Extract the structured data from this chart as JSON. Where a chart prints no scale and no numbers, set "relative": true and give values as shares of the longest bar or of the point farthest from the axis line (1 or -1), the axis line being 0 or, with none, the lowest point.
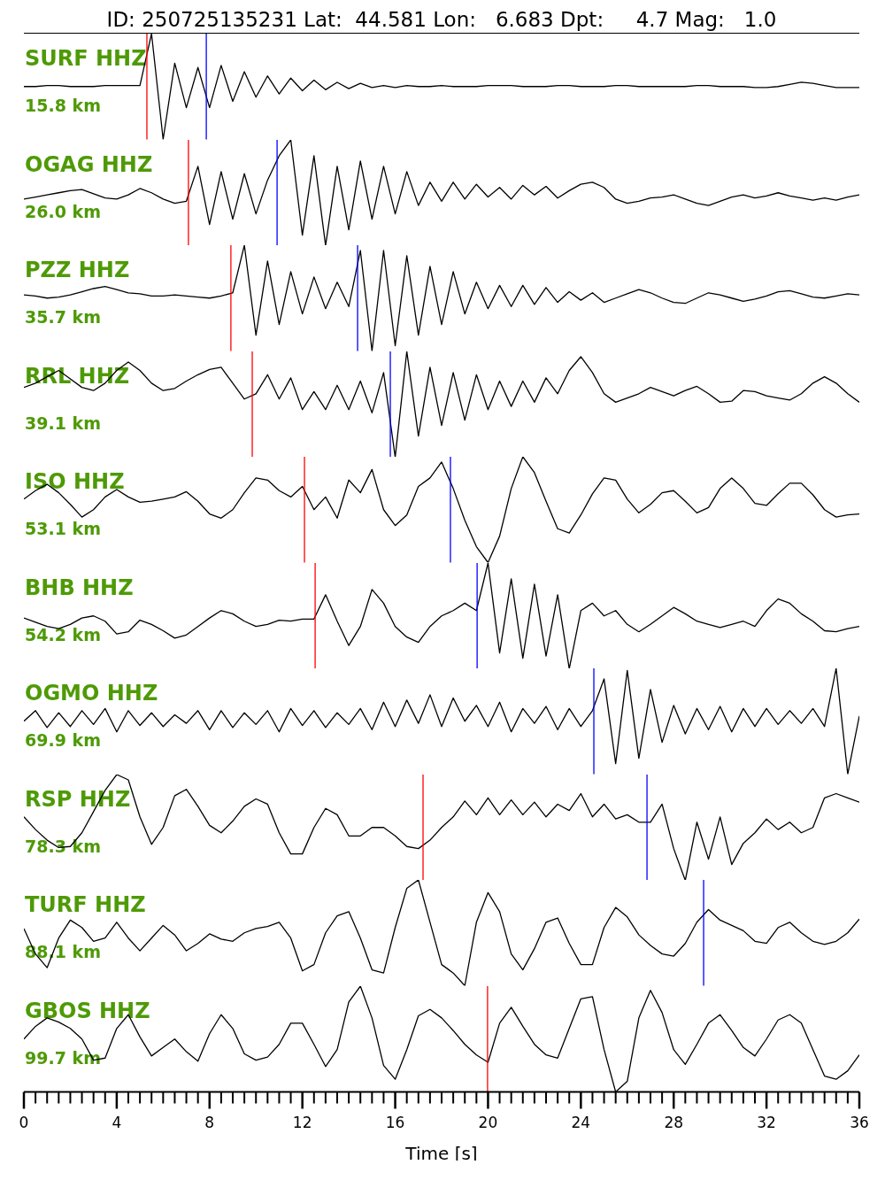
{
  "chart_data": [
    {
      "type": "other",
      "title": "ID: 250725135231 Lat:  44.581 Lon:   6.683 Dpt:     4.7 Mag:   1.0"
    },
    {
      "type": "line",
      "title": "SURF HHZ",
      "subtitle": "15.8 km",
      "relative": true,
      "xlim": [
        0,
        36
      ],
      "tick_labels": false,
      "x": [
        0,
        0.5,
        1,
        1.5,
        2,
        2.5,
        3,
        3.5,
        4,
        4.5,
        5,
        5.5,
        6,
        6.5,
        7,
        7.5,
        8,
        8.5,
        9,
        9.5,
        10,
        10.5,
        11,
        11.5,
        12,
        12.5,
        13,
        13.5,
        14,
        14.5,
        15,
        15.5,
        16,
        16.5,
        17,
        17.5,
        18,
        18.5,
        19,
        19.5,
        20,
        20.5,
        21,
        21.5,
        22,
        22.5,
        23,
        23.5,
        24,
        24.5,
        25,
        25.5,
        26,
        26.5,
        27,
        27.5,
        28,
        28.5,
        29,
        29.5,
        30,
        30.5,
        31,
        31.5,
        32,
        32.5,
        33,
        33.5,
        34,
        34.5,
        35,
        35.5,
        36
      ],
      "series": [
        {
          "color": "#000000",
          "values": [
            0.5,
            0.5,
            0.51,
            0.51,
            0.5,
            0.5,
            0.5,
            0.51,
            0.51,
            0.51,
            0.51,
            1.0,
            0.0,
            0.72,
            0.3,
            0.68,
            0.3,
            0.7,
            0.36,
            0.64,
            0.4,
            0.6,
            0.43,
            0.58,
            0.46,
            0.56,
            0.47,
            0.54,
            0.48,
            0.53,
            0.49,
            0.51,
            0.49,
            0.51,
            0.5,
            0.5,
            0.51,
            0.5,
            0.5,
            0.5,
            0.51,
            0.51,
            0.51,
            0.5,
            0.5,
            0.5,
            0.51,
            0.51,
            0.5,
            0.5,
            0.5,
            0.51,
            0.51,
            0.5,
            0.5,
            0.5,
            0.5,
            0.5,
            0.51,
            0.51,
            0.5,
            0.5,
            0.5,
            0.49,
            0.49,
            0.5,
            0.52,
            0.54,
            0.53,
            0.51,
            0.49,
            0.49,
            0.49
          ]
        }
      ],
      "ref_lines": [
        {
          "axis": "x",
          "value": 5.3,
          "color": "#ff0000"
        },
        {
          "axis": "x",
          "value": 7.86,
          "color": "#0000ff"
        }
      ]
    },
    {
      "type": "line",
      "title": "OGAG HHZ",
      "subtitle": "26.0 km",
      "relative": true,
      "xlim": [
        0,
        36
      ],
      "tick_labels": false,
      "x": [
        0,
        0.5,
        1,
        1.5,
        2,
        2.5,
        3,
        3.5,
        4,
        4.5,
        5,
        5.5,
        6,
        6.5,
        7,
        7.5,
        8,
        8.5,
        9,
        9.5,
        10,
        10.5,
        11,
        11.5,
        12,
        12.5,
        13,
        13.5,
        14,
        14.5,
        15,
        15.5,
        16,
        16.5,
        17,
        17.5,
        18,
        18.5,
        19,
        19.5,
        20,
        20.5,
        21,
        21.5,
        22,
        22.5,
        23,
        23.5,
        24,
        24.5,
        25,
        25.5,
        26,
        26.5,
        27,
        27.5,
        28,
        28.5,
        29,
        29.5,
        30,
        30.5,
        31,
        31.5,
        32,
        32.5,
        33,
        33.5,
        34,
        34.5,
        35,
        35.5,
        36
      ],
      "series": [
        {
          "color": "#000000",
          "values": [
            0.44,
            0.46,
            0.48,
            0.5,
            0.52,
            0.53,
            0.49,
            0.45,
            0.44,
            0.48,
            0.54,
            0.5,
            0.44,
            0.4,
            0.42,
            0.75,
            0.2,
            0.7,
            0.25,
            0.68,
            0.3,
            0.62,
            0.85,
            1.0,
            0.1,
            0.85,
            0.0,
            0.75,
            0.15,
            0.8,
            0.25,
            0.75,
            0.3,
            0.7,
            0.38,
            0.6,
            0.42,
            0.6,
            0.44,
            0.58,
            0.46,
            0.55,
            0.44,
            0.57,
            0.48,
            0.56,
            0.45,
            0.52,
            0.58,
            0.6,
            0.55,
            0.44,
            0.4,
            0.42,
            0.45,
            0.46,
            0.48,
            0.44,
            0.4,
            0.38,
            0.42,
            0.46,
            0.48,
            0.45,
            0.47,
            0.5,
            0.47,
            0.45,
            0.43,
            0.45,
            0.43,
            0.46,
            0.48
          ]
        }
      ],
      "ref_lines": [
        {
          "axis": "x",
          "value": 7.09,
          "color": "#ff0000"
        },
        {
          "axis": "x",
          "value": 10.91,
          "color": "#0000ff"
        }
      ]
    },
    {
      "type": "line",
      "title": "PZZ HHZ",
      "subtitle": "35.7 km",
      "relative": true,
      "xlim": [
        0,
        36
      ],
      "tick_labels": false,
      "x": [
        0,
        0.5,
        1,
        1.5,
        2,
        2.5,
        3,
        3.5,
        4,
        4.5,
        5,
        5.5,
        6,
        6.5,
        7,
        7.5,
        8,
        8.5,
        9,
        9.5,
        10,
        10.5,
        11,
        11.5,
        12,
        12.5,
        13,
        13.5,
        14,
        14.5,
        15,
        15.5,
        16,
        16.5,
        17,
        17.5,
        18,
        18.5,
        19,
        19.5,
        20,
        20.5,
        21,
        21.5,
        22,
        22.5,
        23,
        23.5,
        24,
        24.5,
        25,
        25.5,
        26,
        26.5,
        27,
        27.5,
        28,
        28.5,
        29,
        29.5,
        30,
        30.5,
        31,
        31.5,
        32,
        32.5,
        33,
        33.5,
        34,
        34.5,
        35,
        35.5,
        36
      ],
      "series": [
        {
          "color": "#000000",
          "values": [
            0.53,
            0.52,
            0.5,
            0.51,
            0.53,
            0.56,
            0.59,
            0.61,
            0.58,
            0.55,
            0.54,
            0.52,
            0.52,
            0.53,
            0.52,
            0.51,
            0.5,
            0.52,
            0.55,
            1.0,
            0.15,
            0.85,
            0.25,
            0.75,
            0.35,
            0.7,
            0.4,
            0.65,
            0.42,
            0.95,
            0.0,
            0.95,
            0.05,
            0.9,
            0.15,
            0.8,
            0.25,
            0.75,
            0.35,
            0.65,
            0.4,
            0.62,
            0.42,
            0.62,
            0.44,
            0.6,
            0.46,
            0.56,
            0.48,
            0.55,
            0.46,
            0.5,
            0.54,
            0.58,
            0.55,
            0.5,
            0.46,
            0.45,
            0.5,
            0.55,
            0.53,
            0.5,
            0.47,
            0.49,
            0.52,
            0.56,
            0.57,
            0.54,
            0.51,
            0.5,
            0.52,
            0.54,
            0.53
          ]
        }
      ],
      "ref_lines": [
        {
          "axis": "x",
          "value": 8.92,
          "color": "#ff0000"
        },
        {
          "axis": "x",
          "value": 14.38,
          "color": "#0000ff"
        }
      ]
    },
    {
      "type": "line",
      "title": "RRL HHZ",
      "subtitle": "39.1 km",
      "relative": true,
      "xlim": [
        0,
        36
      ],
      "tick_labels": false,
      "x": [
        0,
        0.5,
        1,
        1.5,
        2,
        2.5,
        3,
        3.5,
        4,
        4.5,
        5,
        5.5,
        6,
        6.5,
        7,
        7.5,
        8,
        8.5,
        9,
        9.5,
        10,
        10.5,
        11,
        11.5,
        12,
        12.5,
        13,
        13.5,
        14,
        14.5,
        15,
        15.5,
        16,
        16.5,
        17,
        17.5,
        18,
        18.5,
        19,
        19.5,
        20,
        20.5,
        21,
        21.5,
        22,
        22.5,
        23,
        23.5,
        24,
        24.5,
        25,
        25.5,
        26,
        26.5,
        27,
        27.5,
        28,
        28.5,
        29,
        29.5,
        30,
        30.5,
        31,
        31.5,
        32,
        32.5,
        33,
        33.5,
        34,
        34.5,
        35,
        35.5,
        36
      ],
      "series": [
        {
          "color": "#000000",
          "values": [
            0.66,
            0.7,
            0.76,
            0.82,
            0.74,
            0.66,
            0.63,
            0.7,
            0.82,
            0.9,
            0.82,
            0.7,
            0.63,
            0.65,
            0.72,
            0.78,
            0.83,
            0.85,
            0.7,
            0.55,
            0.6,
            0.78,
            0.55,
            0.75,
            0.45,
            0.62,
            0.45,
            0.68,
            0.45,
            0.72,
            0.42,
            0.8,
            0.0,
            1.0,
            0.2,
            0.85,
            0.3,
            0.8,
            0.35,
            0.78,
            0.45,
            0.72,
            0.48,
            0.72,
            0.52,
            0.75,
            0.6,
            0.82,
            0.95,
            0.8,
            0.6,
            0.52,
            0.56,
            0.6,
            0.66,
            0.62,
            0.58,
            0.63,
            0.67,
            0.6,
            0.52,
            0.53,
            0.63,
            0.62,
            0.58,
            0.56,
            0.54,
            0.6,
            0.7,
            0.76,
            0.7,
            0.6,
            0.52
          ]
        }
      ],
      "ref_lines": [
        {
          "axis": "x",
          "value": 9.84,
          "color": "#ff0000"
        },
        {
          "axis": "x",
          "value": 15.79,
          "color": "#0000ff"
        }
      ]
    },
    {
      "type": "line",
      "title": "ISO HHZ",
      "subtitle": "53.1 km",
      "relative": true,
      "xlim": [
        0,
        36
      ],
      "tick_labels": false,
      "x": [
        0,
        0.5,
        1,
        1.5,
        2,
        2.5,
        3,
        3.5,
        4,
        4.5,
        5,
        5.5,
        6,
        6.5,
        7,
        7.5,
        8,
        8.5,
        9,
        9.5,
        10,
        10.5,
        11,
        11.5,
        12,
        12.5,
        13,
        13.5,
        14,
        14.5,
        15,
        15.5,
        16,
        16.5,
        17,
        17.5,
        18,
        18.5,
        19,
        19.5,
        20,
        20.5,
        21,
        21.5,
        22,
        22.5,
        23,
        23.5,
        24,
        24.5,
        25,
        25.5,
        26,
        26.5,
        27,
        27.5,
        28,
        28.5,
        29,
        29.5,
        30,
        30.5,
        31,
        31.5,
        32,
        32.5,
        33,
        33.5,
        34,
        34.5,
        35,
        35.5,
        36
      ],
      "series": [
        {
          "color": "#000000",
          "values": [
            0.6,
            0.68,
            0.74,
            0.66,
            0.55,
            0.43,
            0.5,
            0.62,
            0.69,
            0.62,
            0.57,
            0.58,
            0.6,
            0.62,
            0.67,
            0.58,
            0.46,
            0.42,
            0.5,
            0.66,
            0.8,
            0.78,
            0.68,
            0.62,
            0.72,
            0.5,
            0.62,
            0.42,
            0.78,
            0.66,
            0.88,
            0.5,
            0.35,
            0.45,
            0.72,
            0.8,
            0.95,
            0.7,
            0.4,
            0.15,
            0.0,
            0.25,
            0.7,
            1.0,
            0.85,
            0.58,
            0.32,
            0.28,
            0.45,
            0.65,
            0.8,
            0.78,
            0.6,
            0.47,
            0.55,
            0.66,
            0.68,
            0.58,
            0.47,
            0.52,
            0.7,
            0.8,
            0.7,
            0.56,
            0.54,
            0.65,
            0.75,
            0.75,
            0.64,
            0.5,
            0.43,
            0.45,
            0.46
          ]
        }
      ],
      "ref_lines": [
        {
          "axis": "x",
          "value": 12.09,
          "color": "#ff0000"
        },
        {
          "axis": "x",
          "value": 18.38,
          "color": "#0000ff"
        }
      ]
    },
    {
      "type": "line",
      "title": "BHB HHZ",
      "subtitle": "54.2 km",
      "relative": true,
      "xlim": [
        0,
        36
      ],
      "tick_labels": false,
      "x": [
        0,
        0.5,
        1,
        1.5,
        2,
        2.5,
        3,
        3.5,
        4,
        4.5,
        5,
        5.5,
        6,
        6.5,
        7,
        7.5,
        8,
        8.5,
        9,
        9.5,
        10,
        10.5,
        11,
        11.5,
        12,
        12.5,
        13,
        13.5,
        14,
        14.5,
        15,
        15.5,
        16,
        16.5,
        17,
        17.5,
        18,
        18.5,
        19,
        19.5,
        20,
        20.5,
        21,
        21.5,
        22,
        22.5,
        23,
        23.5,
        24,
        24.5,
        25,
        25.5,
        26,
        26.5,
        27,
        27.5,
        28,
        28.5,
        29,
        29.5,
        30,
        30.5,
        31,
        31.5,
        32,
        32.5,
        33,
        33.5,
        34,
        34.5,
        35,
        35.5,
        36
      ],
      "series": [
        {
          "color": "#000000",
          "values": [
            0.48,
            0.44,
            0.4,
            0.38,
            0.42,
            0.48,
            0.5,
            0.45,
            0.33,
            0.35,
            0.46,
            0.42,
            0.36,
            0.29,
            0.32,
            0.4,
            0.48,
            0.55,
            0.52,
            0.45,
            0.4,
            0.42,
            0.46,
            0.45,
            0.47,
            0.47,
            0.7,
            0.45,
            0.22,
            0.4,
            0.75,
            0.62,
            0.4,
            0.3,
            0.25,
            0.4,
            0.5,
            0.55,
            0.62,
            0.55,
            1.0,
            0.15,
            0.85,
            0.1,
            0.8,
            0.12,
            0.7,
            0.0,
            0.55,
            0.62,
            0.5,
            0.55,
            0.42,
            0.35,
            0.42,
            0.5,
            0.58,
            0.52,
            0.45,
            0.42,
            0.39,
            0.42,
            0.45,
            0.4,
            0.55,
            0.66,
            0.62,
            0.52,
            0.45,
            0.36,
            0.35,
            0.38,
            0.4
          ]
        }
      ],
      "ref_lines": [
        {
          "axis": "x",
          "value": 12.55,
          "color": "#ff0000"
        },
        {
          "axis": "x",
          "value": 19.53,
          "color": "#0000ff"
        }
      ]
    },
    {
      "type": "line",
      "title": "OGMO HHZ",
      "subtitle": "69.9 km",
      "relative": true,
      "xlim": [
        0,
        36
      ],
      "tick_labels": false,
      "x": [
        0,
        0.5,
        1,
        1.5,
        2,
        2.5,
        3,
        3.5,
        4,
        4.5,
        5,
        5.5,
        6,
        6.5,
        7,
        7.5,
        8,
        8.5,
        9,
        9.5,
        10,
        10.5,
        11,
        11.5,
        12,
        12.5,
        13,
        13.5,
        14,
        14.5,
        15,
        15.5,
        16,
        16.5,
        17,
        17.5,
        18,
        18.5,
        19,
        19.5,
        20,
        20.5,
        21,
        21.5,
        22,
        22.5,
        23,
        23.5,
        24,
        24.5,
        25,
        25.5,
        26,
        26.5,
        27,
        27.5,
        28,
        28.5,
        29,
        29.5,
        30,
        30.5,
        31,
        31.5,
        32,
        32.5,
        33,
        33.5,
        34,
        34.5,
        35,
        35.5,
        36
      ],
      "series": [
        {
          "color": "#000000",
          "values": [
            0.5,
            0.6,
            0.44,
            0.58,
            0.45,
            0.6,
            0.47,
            0.62,
            0.4,
            0.6,
            0.46,
            0.58,
            0.45,
            0.56,
            0.48,
            0.6,
            0.42,
            0.6,
            0.44,
            0.58,
            0.47,
            0.6,
            0.4,
            0.62,
            0.46,
            0.6,
            0.44,
            0.58,
            0.47,
            0.62,
            0.42,
            0.68,
            0.45,
            0.7,
            0.48,
            0.75,
            0.45,
            0.72,
            0.5,
            0.65,
            0.45,
            0.68,
            0.4,
            0.62,
            0.48,
            0.64,
            0.42,
            0.62,
            0.45,
            0.6,
            0.9,
            0.1,
            0.98,
            0.15,
            0.8,
            0.3,
            0.65,
            0.38,
            0.62,
            0.42,
            0.64,
            0.4,
            0.62,
            0.45,
            0.62,
            0.47,
            0.6,
            0.48,
            0.62,
            0.45,
            1.0,
            0.0,
            0.55
          ]
        }
      ],
      "ref_lines": [
        {
          "axis": "x",
          "value": 24.56,
          "color": "#0000ff"
        }
      ]
    },
    {
      "type": "line",
      "title": "RSP HHZ",
      "subtitle": "78.3 km",
      "relative": true,
      "xlim": [
        0,
        36
      ],
      "tick_labels": false,
      "x": [
        0,
        0.5,
        1,
        1.5,
        2,
        2.5,
        3,
        3.5,
        4,
        4.5,
        5,
        5.5,
        6,
        6.5,
        7,
        7.5,
        8,
        8.5,
        9,
        9.5,
        10,
        10.5,
        11,
        11.5,
        12,
        12.5,
        13,
        13.5,
        14,
        14.5,
        15,
        15.5,
        16,
        16.5,
        17,
        17.5,
        18,
        18.5,
        19,
        19.5,
        20,
        20.5,
        21,
        21.5,
        22,
        22.5,
        23,
        23.5,
        24,
        24.5,
        25,
        25.5,
        26,
        26.5,
        27,
        27.5,
        28,
        28.5,
        29,
        29.5,
        30,
        30.5,
        31,
        31.5,
        32,
        32.5,
        33,
        33.5,
        34,
        34.5,
        35,
        35.5,
        36
      ],
      "series": [
        {
          "color": "#000000",
          "values": [
            0.6,
            0.48,
            0.38,
            0.31,
            0.32,
            0.45,
            0.65,
            0.85,
            1.0,
            0.95,
            0.6,
            0.34,
            0.5,
            0.8,
            0.86,
            0.7,
            0.52,
            0.45,
            0.56,
            0.7,
            0.77,
            0.72,
            0.45,
            0.25,
            0.25,
            0.5,
            0.68,
            0.62,
            0.42,
            0.42,
            0.5,
            0.5,
            0.42,
            0.32,
            0.3,
            0.38,
            0.5,
            0.6,
            0.75,
            0.62,
            0.78,
            0.62,
            0.76,
            0.62,
            0.74,
            0.6,
            0.72,
            0.66,
            0.82,
            0.6,
            0.72,
            0.58,
            0.62,
            0.55,
            0.55,
            0.72,
            0.3,
            0.0,
            0.55,
            0.2,
            0.6,
            0.15,
            0.35,
            0.45,
            0.58,
            0.48,
            0.55,
            0.45,
            0.5,
            0.78,
            0.82,
            0.78,
            0.74
          ]
        }
      ],
      "ref_lines": [
        {
          "axis": "x",
          "value": 17.2,
          "color": "#ff0000"
        },
        {
          "axis": "x",
          "value": 26.85,
          "color": "#0000ff"
        }
      ]
    },
    {
      "type": "line",
      "title": "TURF HHZ",
      "subtitle": "88.1 km",
      "relative": true,
      "xlim": [
        0,
        36
      ],
      "tick_labels": false,
      "x": [
        0,
        0.5,
        1,
        1.5,
        2,
        2.5,
        3,
        3.5,
        4,
        4.5,
        5,
        5.5,
        6,
        6.5,
        7,
        7.5,
        8,
        8.5,
        9,
        9.5,
        10,
        10.5,
        11,
        11.5,
        12,
        12.5,
        13,
        13.5,
        14,
        14.5,
        15,
        15.5,
        16,
        16.5,
        17,
        17.5,
        18,
        18.5,
        19,
        19.5,
        20,
        20.5,
        21,
        21.5,
        22,
        22.5,
        23,
        23.5,
        24,
        24.5,
        25,
        25.5,
        26,
        26.5,
        27,
        27.5,
        28,
        28.5,
        29,
        29.5,
        30,
        30.5,
        31,
        31.5,
        32,
        32.5,
        33,
        33.5,
        34,
        34.5,
        35,
        35.5,
        36
      ],
      "series": [
        {
          "color": "#000000",
          "values": [
            0.54,
            0.3,
            0.17,
            0.45,
            0.62,
            0.55,
            0.42,
            0.45,
            0.6,
            0.45,
            0.33,
            0.45,
            0.57,
            0.48,
            0.33,
            0.4,
            0.49,
            0.44,
            0.42,
            0.5,
            0.54,
            0.56,
            0.6,
            0.45,
            0.14,
            0.2,
            0.5,
            0.66,
            0.7,
            0.45,
            0.15,
            0.12,
            0.55,
            0.92,
            1.0,
            0.6,
            0.2,
            0.12,
            0.0,
            0.6,
            0.88,
            0.7,
            0.3,
            0.15,
            0.35,
            0.6,
            0.64,
            0.4,
            0.2,
            0.2,
            0.55,
            0.74,
            0.65,
            0.48,
            0.38,
            0.3,
            0.28,
            0.4,
            0.6,
            0.72,
            0.62,
            0.57,
            0.52,
            0.42,
            0.4,
            0.55,
            0.6,
            0.5,
            0.42,
            0.39,
            0.42,
            0.5,
            0.63
          ]
        }
      ],
      "ref_lines": [
        {
          "axis": "x",
          "value": 29.29,
          "color": "#0000ff"
        }
      ]
    },
    {
      "type": "line",
      "title": "GBOS HHZ",
      "subtitle": "99.7 km",
      "relative": true,
      "xlim": [
        0,
        36
      ],
      "tick_labels": "x",
      "xlabel": "Time [s]",
      "xticks": [
        0,
        {
          "value": 0.5,
          "label": null
        },
        {
          "value": 1,
          "label": null
        },
        {
          "value": 1.5,
          "label": null
        },
        {
          "value": 2,
          "label": null
        },
        {
          "value": 2.5,
          "label": null
        },
        {
          "value": 3,
          "label": null
        },
        {
          "value": 3.5,
          "label": null
        },
        4,
        {
          "value": 4.5,
          "label": null
        },
        {
          "value": 5,
          "label": null
        },
        {
          "value": 5.5,
          "label": null
        },
        {
          "value": 6,
          "label": null
        },
        {
          "value": 6.5,
          "label": null
        },
        {
          "value": 7,
          "label": null
        },
        {
          "value": 7.5,
          "label": null
        },
        8,
        {
          "value": 8.5,
          "label": null
        },
        {
          "value": 9,
          "label": null
        },
        {
          "value": 9.5,
          "label": null
        },
        {
          "value": 10,
          "label": null
        },
        {
          "value": 10.5,
          "label": null
        },
        {
          "value": 11,
          "label": null
        },
        {
          "value": 11.5,
          "label": null
        },
        12,
        {
          "value": 12.5,
          "label": null
        },
        {
          "value": 13,
          "label": null
        },
        {
          "value": 13.5,
          "label": null
        },
        {
          "value": 14,
          "label": null
        },
        {
          "value": 14.5,
          "label": null
        },
        {
          "value": 15,
          "label": null
        },
        {
          "value": 15.5,
          "label": null
        },
        16,
        {
          "value": 16.5,
          "label": null
        },
        {
          "value": 17,
          "label": null
        },
        {
          "value": 17.5,
          "label": null
        },
        {
          "value": 18,
          "label": null
        },
        {
          "value": 18.5,
          "label": null
        },
        {
          "value": 19,
          "label": null
        },
        {
          "value": 19.5,
          "label": null
        },
        20,
        {
          "value": 20.5,
          "label": null
        },
        {
          "value": 21,
          "label": null
        },
        {
          "value": 21.5,
          "label": null
        },
        {
          "value": 22,
          "label": null
        },
        {
          "value": 22.5,
          "label": null
        },
        {
          "value": 23,
          "label": null
        },
        {
          "value": 23.5,
          "label": null
        },
        24,
        {
          "value": 24.5,
          "label": null
        },
        {
          "value": 25,
          "label": null
        },
        {
          "value": 25.5,
          "label": null
        },
        {
          "value": 26,
          "label": null
        },
        {
          "value": 26.5,
          "label": null
        },
        {
          "value": 27,
          "label": null
        },
        {
          "value": 27.5,
          "label": null
        },
        28,
        {
          "value": 28.5,
          "label": null
        },
        {
          "value": 29,
          "label": null
        },
        {
          "value": 29.5,
          "label": null
        },
        {
          "value": 30,
          "label": null
        },
        {
          "value": 30.5,
          "label": null
        },
        {
          "value": 31,
          "label": null
        },
        {
          "value": 31.5,
          "label": null
        },
        32,
        {
          "value": 32.5,
          "label": null
        },
        {
          "value": 33,
          "label": null
        },
        {
          "value": 33.5,
          "label": null
        },
        {
          "value": 34,
          "label": null
        },
        {
          "value": 34.5,
          "label": null
        },
        {
          "value": 35,
          "label": null
        },
        {
          "value": 35.5,
          "label": null
        },
        36
      ],
      "x": [
        0,
        0.5,
        1,
        1.5,
        2,
        2.5,
        3,
        3.5,
        4,
        4.5,
        5,
        5.5,
        6,
        6.5,
        7,
        7.5,
        8,
        8.5,
        9,
        9.5,
        10,
        10.5,
        11,
        11.5,
        12,
        12.5,
        13,
        13.5,
        14,
        14.5,
        15,
        15.5,
        16,
        16.5,
        17,
        17.5,
        18,
        18.5,
        19,
        19.5,
        20,
        20.5,
        21,
        21.5,
        22,
        22.5,
        23,
        23.5,
        24,
        24.5,
        25,
        25.5,
        26,
        26.5,
        27,
        27.5,
        28,
        28.5,
        29,
        29.5,
        30,
        30.5,
        31,
        31.5,
        32,
        32.5,
        33,
        33.5,
        34,
        34.5,
        35,
        35.5,
        36
      ],
      "series": [
        {
          "color": "#000000",
          "values": [
            0.5,
            0.62,
            0.7,
            0.66,
            0.6,
            0.5,
            0.3,
            0.32,
            0.6,
            0.73,
            0.52,
            0.34,
            0.42,
            0.5,
            0.38,
            0.29,
            0.55,
            0.73,
            0.6,
            0.36,
            0.3,
            0.33,
            0.45,
            0.65,
            0.65,
            0.45,
            0.24,
            0.4,
            0.85,
            1.0,
            0.7,
            0.25,
            0.12,
            0.4,
            0.72,
            0.78,
            0.7,
            0.58,
            0.45,
            0.35,
            0.28,
            0.65,
            0.8,
            0.62,
            0.45,
            0.35,
            0.32,
            0.6,
            0.88,
            0.9,
            0.4,
            0.0,
            0.1,
            0.7,
            0.96,
            0.75,
            0.4,
            0.26,
            0.45,
            0.65,
            0.73,
            0.58,
            0.42,
            0.34,
            0.5,
            0.68,
            0.73,
            0.65,
            0.4,
            0.15,
            0.12,
            0.2,
            0.35
          ]
        }
      ],
      "ref_lines": [
        {
          "axis": "x",
          "value": 19.98,
          "color": "#ff0000"
        }
      ]
    }
  ]
}
